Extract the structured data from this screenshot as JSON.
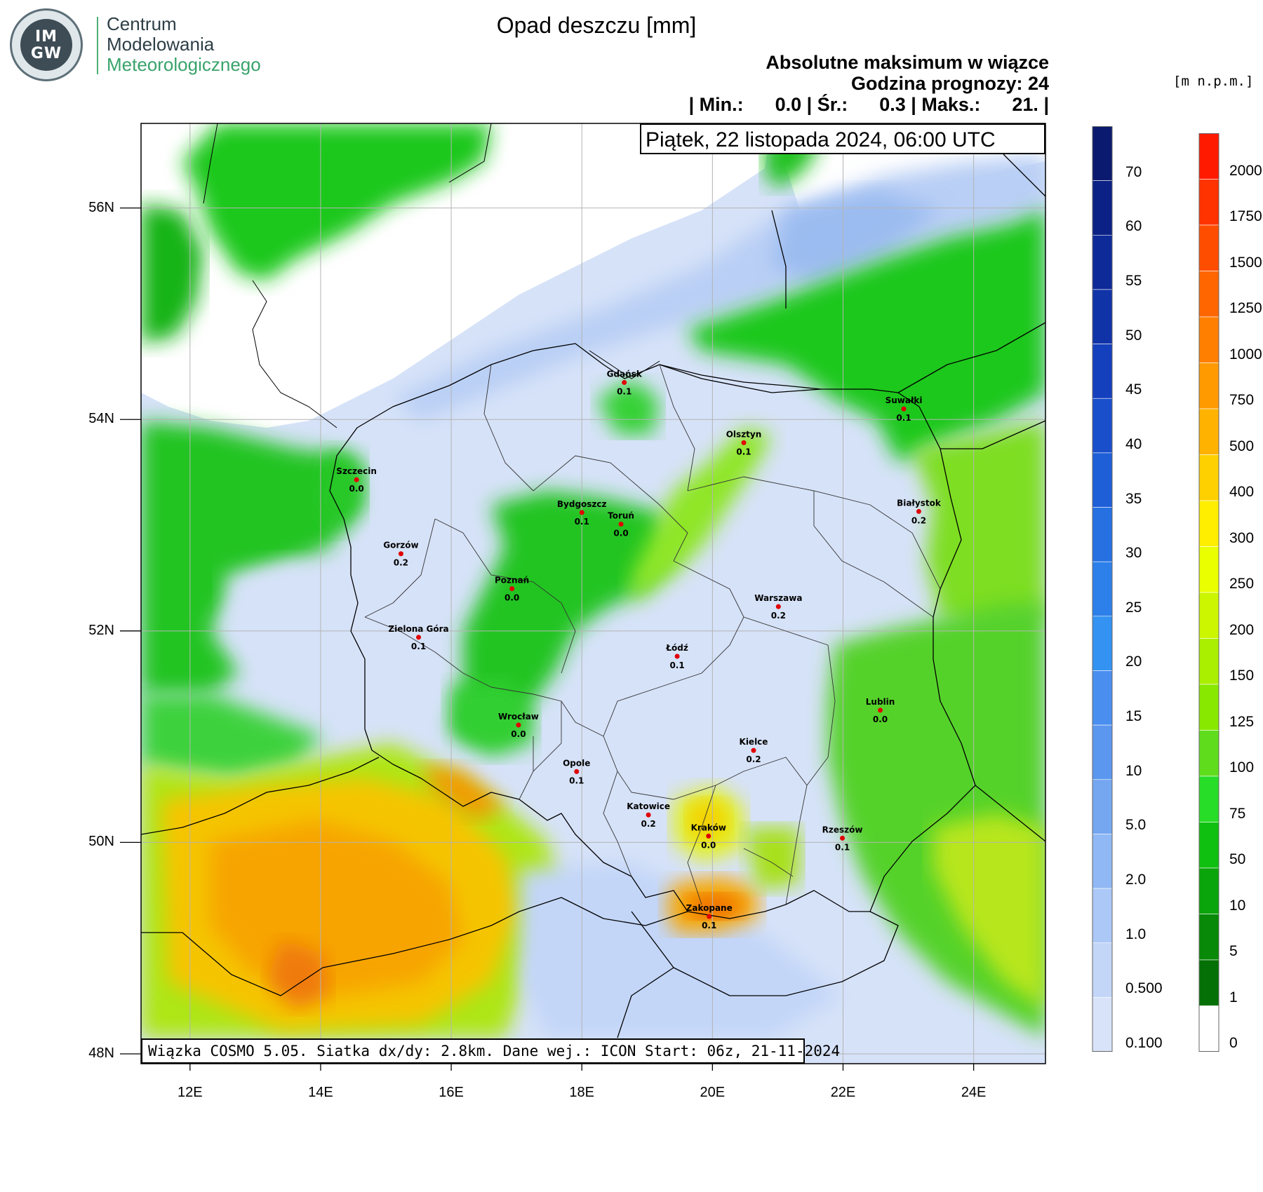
{
  "header": {
    "title": "Opad deszczu [mm]",
    "subtitle_line1": "Absolutne maksimum w wiązce",
    "subtitle_line2": "Godzina prognozy: 24",
    "stats_line": "| Min.:      0.0 | Śr.:      0.3 | Maks.:      21. |",
    "date_box": "Piątek, 22 listopada 2024, 06:00 UTC",
    "unit_label": "[m n.p.m.]"
  },
  "logo": {
    "seal_text_top": "IM",
    "seal_text_bottom": "GW",
    "org_line1": "Centrum",
    "org_line2": "Modelowania",
    "org_line3": "Meteorologicznego"
  },
  "footer": {
    "text": "Wiązka COSMO 5.05. Siatka dx/dy: 2.8km. Dane wej.: ICON Start: 06z, 21-11-2024"
  },
  "axes": {
    "lat_labels": [
      "56N",
      "54N",
      "52N",
      "50N",
      "48N"
    ],
    "lat_values": [
      56,
      54,
      52,
      50,
      48
    ],
    "lon_labels": [
      "12E",
      "14E",
      "16E",
      "18E",
      "20E",
      "22E",
      "24E"
    ],
    "lon_values": [
      12,
      14,
      16,
      18,
      20,
      22,
      24
    ],
    "lon_range": [
      11.25,
      25.1
    ],
    "lat_range": [
      48.0,
      56.8
    ]
  },
  "rain_colorbar": {
    "labels": [
      "70",
      "60",
      "55",
      "50",
      "45",
      "40",
      "35",
      "30",
      "25",
      "20",
      "15",
      "10",
      "5.0",
      "2.0",
      "1.0",
      "0.500",
      "0.100"
    ],
    "colors": [
      "#0a1a6e",
      "#0c2185",
      "#0e2a99",
      "#1133a8",
      "#1540bd",
      "#1a4fcc",
      "#1e5fd8",
      "#2670e2",
      "#2d80ea",
      "#3392f2",
      "#4a8ff0",
      "#5b97ee",
      "#74a7f0",
      "#90b8f4",
      "#abc8f6",
      "#c3d6f8",
      "#d8e3fa"
    ]
  },
  "terrain_colorbar": {
    "labels": [
      "2000",
      "1750",
      "1500",
      "1250",
      "1000",
      "750",
      "500",
      "400",
      "300",
      "250",
      "200",
      "150",
      "125",
      "100",
      "75",
      "50",
      "10",
      "5",
      "1",
      "0"
    ],
    "colors": [
      "#ff1a00",
      "#ff3300",
      "#ff4d00",
      "#ff6600",
      "#ff8000",
      "#ff9a00",
      "#ffb300",
      "#ffd000",
      "#ffee00",
      "#eaff00",
      "#ccf500",
      "#aaee00",
      "#88e800",
      "#5fdd1c",
      "#28dd28",
      "#10c010",
      "#0aa50a",
      "#088a08",
      "#057005",
      "#ffffff"
    ]
  },
  "cities": [
    {
      "name": "Gdańsk",
      "value": "0.1",
      "lon": 18.65,
      "lat": 54.35
    },
    {
      "name": "Suwałki",
      "value": "0.1",
      "lon": 22.93,
      "lat": 54.1
    },
    {
      "name": "Olsztyn",
      "value": "0.1",
      "lon": 20.48,
      "lat": 53.78
    },
    {
      "name": "Szczecin",
      "value": "0.0",
      "lon": 14.55,
      "lat": 53.43
    },
    {
      "name": "Bydgoszcz",
      "value": "0.1",
      "lon": 18.0,
      "lat": 53.12
    },
    {
      "name": "Toruń",
      "value": "0.0",
      "lon": 18.6,
      "lat": 53.01
    },
    {
      "name": "Białystok",
      "value": "0.2",
      "lon": 23.16,
      "lat": 53.13
    },
    {
      "name": "Gorzów",
      "value": "0.2",
      "lon": 15.23,
      "lat": 52.73
    },
    {
      "name": "Poznań",
      "value": "0.0",
      "lon": 16.93,
      "lat": 52.4
    },
    {
      "name": "Warszawa",
      "value": "0.2",
      "lon": 21.01,
      "lat": 52.23
    },
    {
      "name": "Zielona Góra",
      "value": "0.1",
      "lon": 15.5,
      "lat": 51.94
    },
    {
      "name": "Łódź",
      "value": "0.1",
      "lon": 19.46,
      "lat": 51.76
    },
    {
      "name": "Lublin",
      "value": "0.0",
      "lon": 22.57,
      "lat": 51.25
    },
    {
      "name": "Wrocław",
      "value": "0.0",
      "lon": 17.03,
      "lat": 51.11
    },
    {
      "name": "Kielce",
      "value": "0.2",
      "lon": 20.63,
      "lat": 50.87
    },
    {
      "name": "Opole",
      "value": "0.1",
      "lon": 17.92,
      "lat": 50.67
    },
    {
      "name": "Katowice",
      "value": "0.2",
      "lon": 19.02,
      "lat": 50.26
    },
    {
      "name": "Kraków",
      "value": "0.0",
      "lon": 19.94,
      "lat": 50.06
    },
    {
      "name": "Rzeszów",
      "value": "0.1",
      "lon": 21.99,
      "lat": 50.04
    },
    {
      "name": "Zakopane",
      "value": "0.1",
      "lon": 19.95,
      "lat": 49.3
    }
  ]
}
